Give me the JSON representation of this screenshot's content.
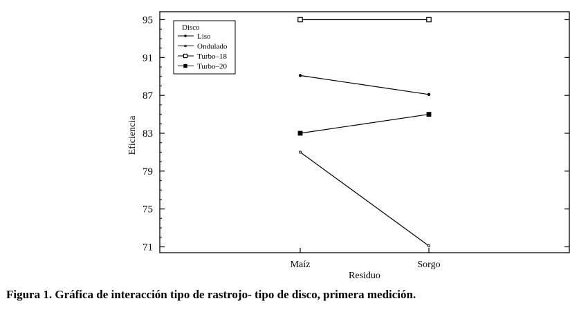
{
  "caption": "Figura 1. Gráfica de interacción tipo de rastrojo- tipo de disco, primera medición.",
  "chart_data": {
    "type": "line",
    "xlabel": "Residuo",
    "ylabel": "Eficiencia",
    "categories": [
      "Maíz",
      "Sorgo"
    ],
    "yticks": [
      71,
      75,
      79,
      83,
      87,
      91,
      95
    ],
    "ylim": [
      70,
      96
    ],
    "legend_title": "Disco",
    "legend_position": "top-left",
    "grid": false,
    "series": [
      {
        "name": "Liso",
        "values": [
          89.1,
          87.1
        ],
        "marker": "dot"
      },
      {
        "name": "Ondulado",
        "values": [
          81.0,
          71.1
        ],
        "marker": "small-dot"
      },
      {
        "name": "Turbo–18",
        "values": [
          95.0,
          95.0
        ],
        "marker": "open-square"
      },
      {
        "name": "Turbo–20",
        "values": [
          83.0,
          85.0
        ],
        "marker": "filled-square"
      }
    ],
    "line_color": "#000000"
  }
}
